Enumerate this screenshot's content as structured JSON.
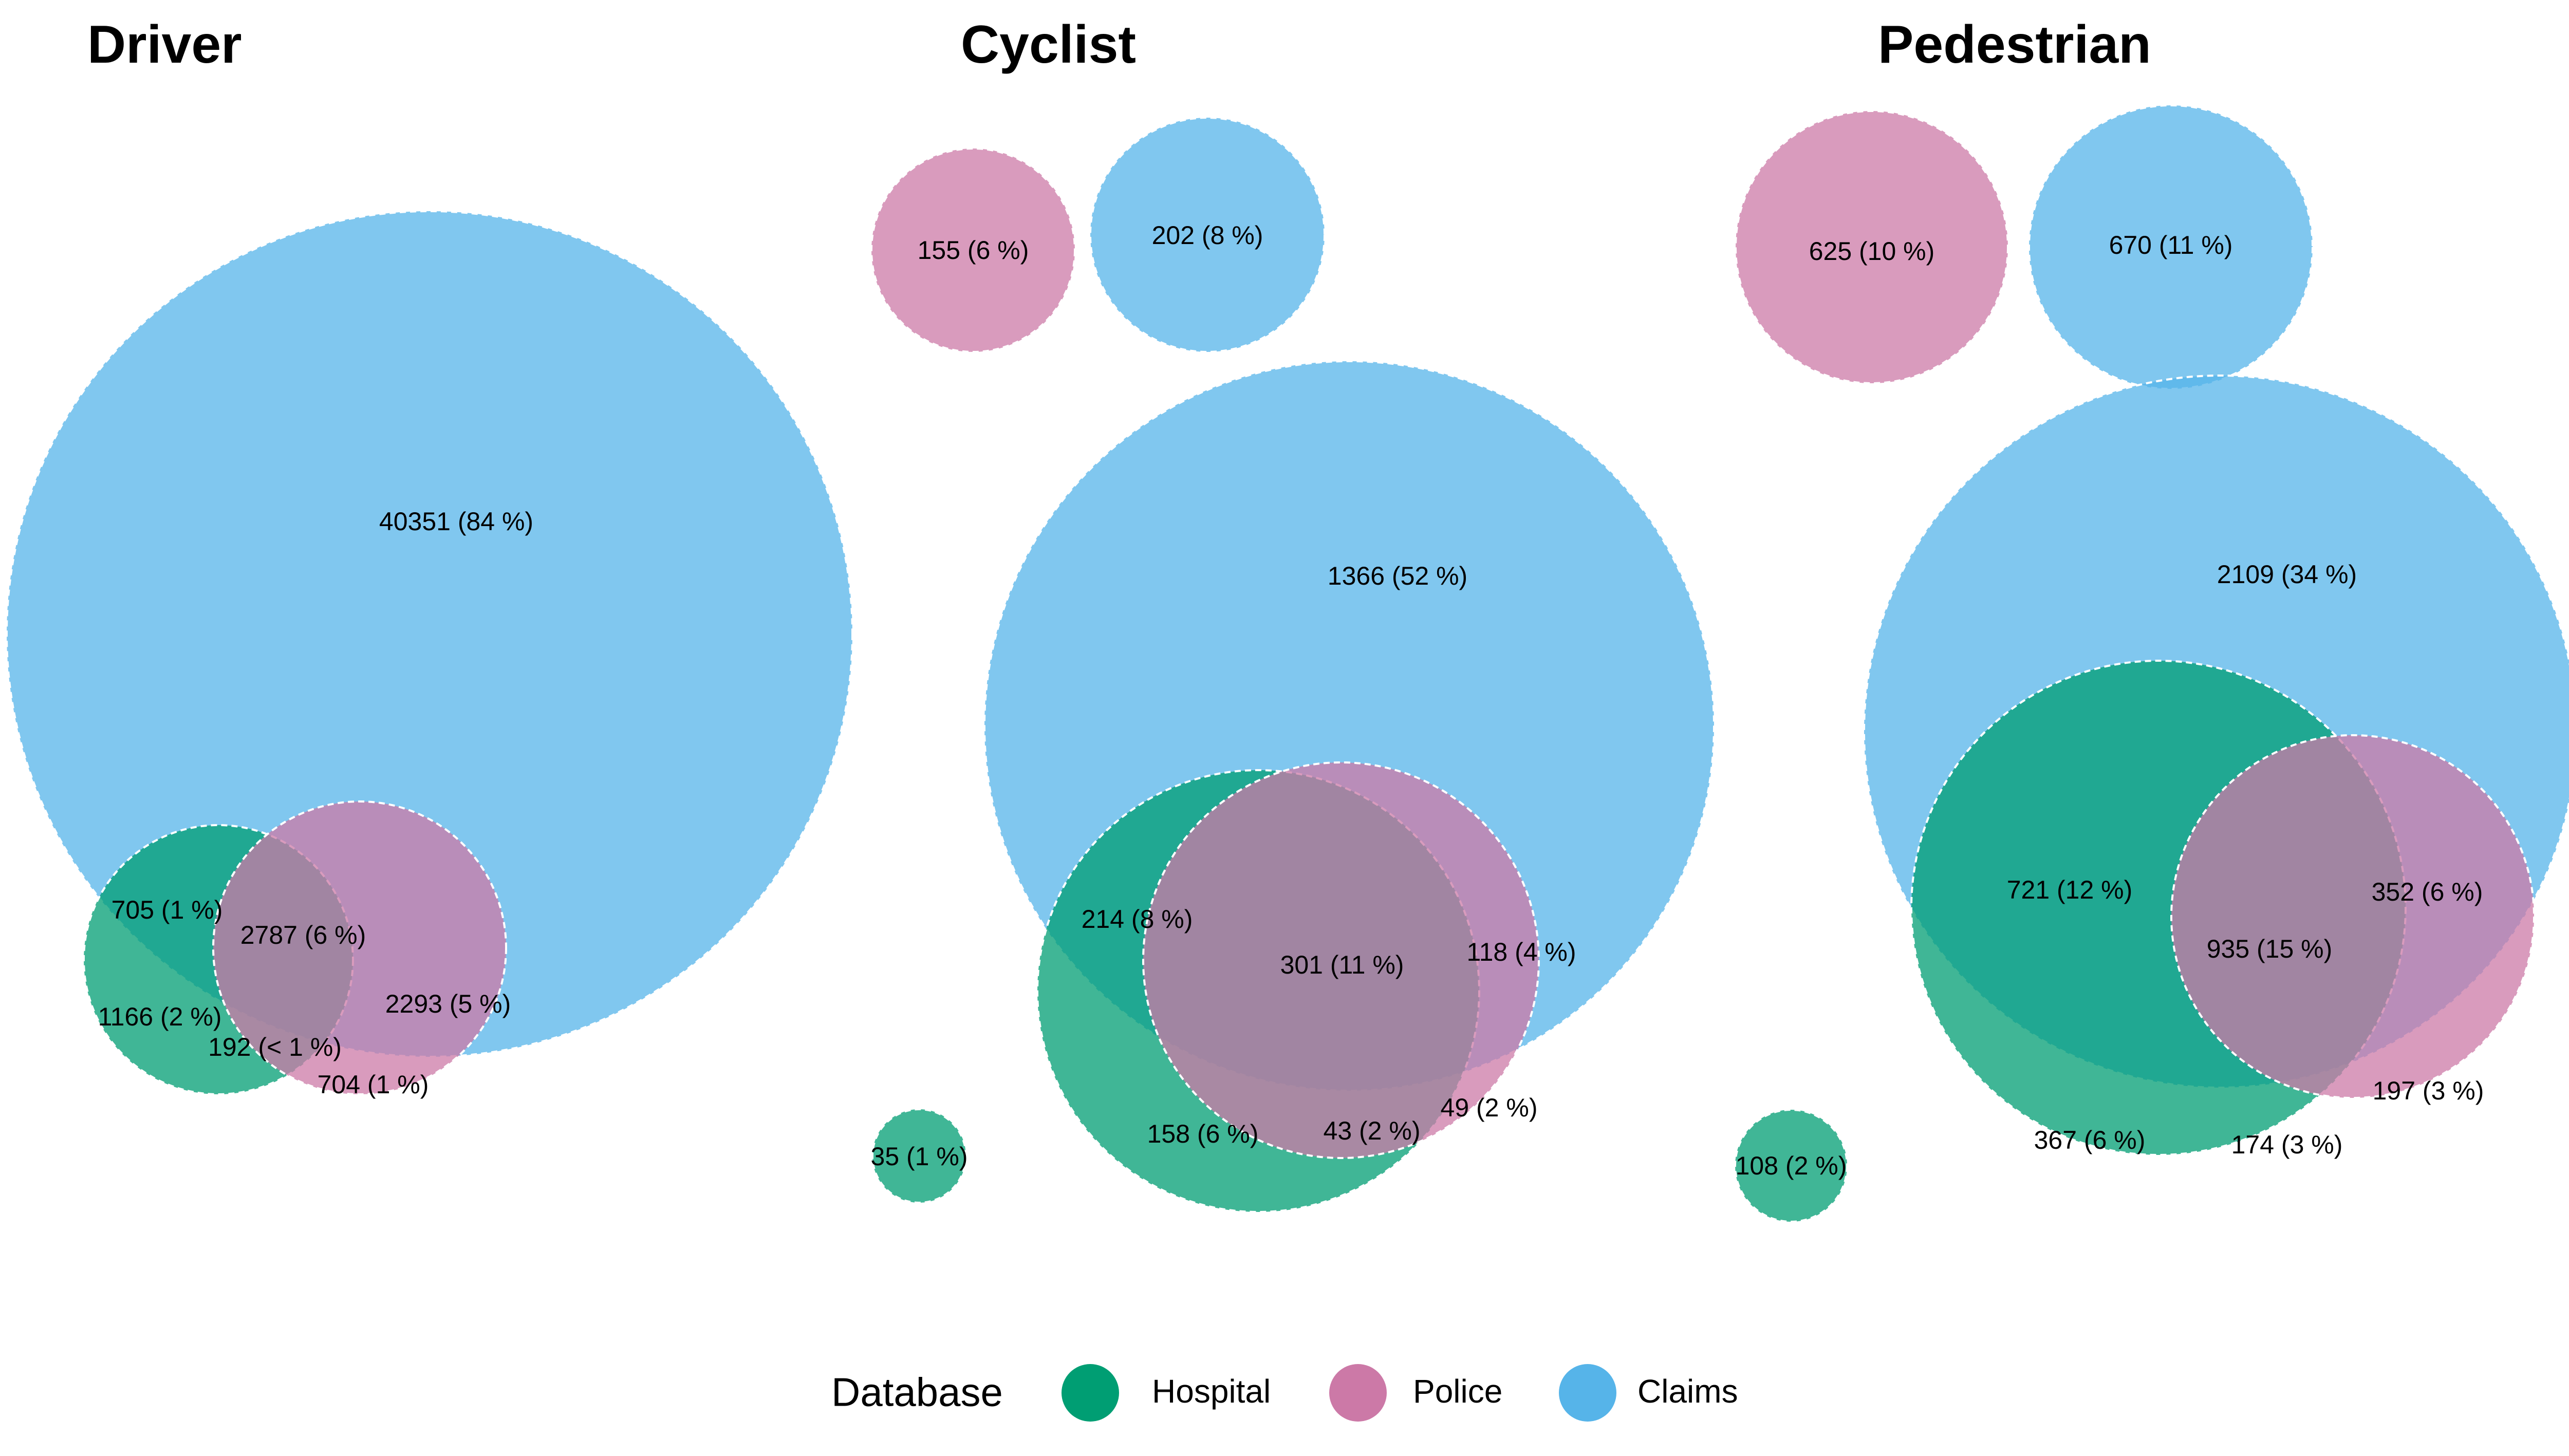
{
  "chart_data": {
    "type": "venn",
    "legend": {
      "title": "Database",
      "position": "bottom",
      "items": [
        {
          "name": "Hospital",
          "color": "#009E73"
        },
        {
          "name": "Police",
          "color": "#CC79A7"
        },
        {
          "name": "Claims",
          "color": "#56B4E9"
        }
      ]
    },
    "panels": [
      {
        "title": "Driver",
        "regions": [
          {
            "sets": [
              "Claims"
            ],
            "label": "40351 (84 %)",
            "count": 40351,
            "percent": 84
          },
          {
            "sets": [
              "Hospital",
              "Claims"
            ],
            "label": "705 (1 %)",
            "count": 705,
            "percent": 1
          },
          {
            "sets": [
              "Hospital",
              "Police",
              "Claims"
            ],
            "label": "2787 (6 %)",
            "count": 2787,
            "percent": 6
          },
          {
            "sets": [
              "Hospital"
            ],
            "label": "1166 (2 %)",
            "count": 1166,
            "percent": 2
          },
          {
            "sets": [
              "Police",
              "Claims"
            ],
            "label": "2293 (5 %)",
            "count": 2293,
            "percent": 5
          },
          {
            "sets": [
              "Hospital",
              "Police"
            ],
            "label": "192 (< 1 %)",
            "count": 192,
            "percent": "< 1"
          },
          {
            "sets": [
              "Police"
            ],
            "label": "704 (1 %)",
            "count": 704,
            "percent": 1
          }
        ]
      },
      {
        "title": "Cyclist",
        "regions": [
          {
            "sets": [
              "Police"
            ],
            "label": "155 (6 %)",
            "count": 155,
            "percent": 6,
            "separate": true
          },
          {
            "sets": [
              "Claims"
            ],
            "label": "202 (8 %)",
            "count": 202,
            "percent": 8,
            "separate": true
          },
          {
            "sets": [
              "Claims"
            ],
            "label": "1366 (52 %)",
            "count": 1366,
            "percent": 52
          },
          {
            "sets": [
              "Hospital",
              "Claims"
            ],
            "label": "214 (8 %)",
            "count": 214,
            "percent": 8
          },
          {
            "sets": [
              "Hospital",
              "Police",
              "Claims"
            ],
            "label": "301 (11 %)",
            "count": 301,
            "percent": 11
          },
          {
            "sets": [
              "Police",
              "Claims"
            ],
            "label": "118 (4 %)",
            "count": 118,
            "percent": 4
          },
          {
            "sets": [
              "Hospital"
            ],
            "label": "158 (6 %)",
            "count": 158,
            "percent": 6
          },
          {
            "sets": [
              "Hospital",
              "Police"
            ],
            "label": "43 (2 %)",
            "count": 43,
            "percent": 2
          },
          {
            "sets": [
              "Police"
            ],
            "label": "49 (2 %)",
            "count": 49,
            "percent": 2
          },
          {
            "sets": [
              "Hospital"
            ],
            "label": "35 (1 %)",
            "count": 35,
            "percent": 1,
            "separate": true
          }
        ]
      },
      {
        "title": "Pedestrian",
        "regions": [
          {
            "sets": [
              "Police"
            ],
            "label": "625 (10 %)",
            "count": 625,
            "percent": 10,
            "separate": true
          },
          {
            "sets": [
              "Claims"
            ],
            "label": "670 (11 %)",
            "count": 670,
            "percent": 11,
            "separate": true
          },
          {
            "sets": [
              "Claims"
            ],
            "label": "2109 (34 %)",
            "count": 2109,
            "percent": 34
          },
          {
            "sets": [
              "Hospital",
              "Claims"
            ],
            "label": "721 (12 %)",
            "count": 721,
            "percent": 12
          },
          {
            "sets": [
              "Hospital",
              "Police",
              "Claims"
            ],
            "label": "935 (15 %)",
            "count": 935,
            "percent": 15
          },
          {
            "sets": [
              "Police",
              "Claims"
            ],
            "label": "352 (6 %)",
            "count": 352,
            "percent": 6
          },
          {
            "sets": [
              "Police"
            ],
            "label": "197 (3 %)",
            "count": 197,
            "percent": 3
          },
          {
            "sets": [
              "Hospital"
            ],
            "label": "367 (6 %)",
            "count": 367,
            "percent": 6
          },
          {
            "sets": [
              "Hospital",
              "Police"
            ],
            "label": "174 (3 %)",
            "count": 174,
            "percent": 3
          },
          {
            "sets": [
              "Hospital"
            ],
            "label": "108 (2 %)",
            "count": 108,
            "percent": 2,
            "separate": true
          }
        ]
      }
    ]
  }
}
